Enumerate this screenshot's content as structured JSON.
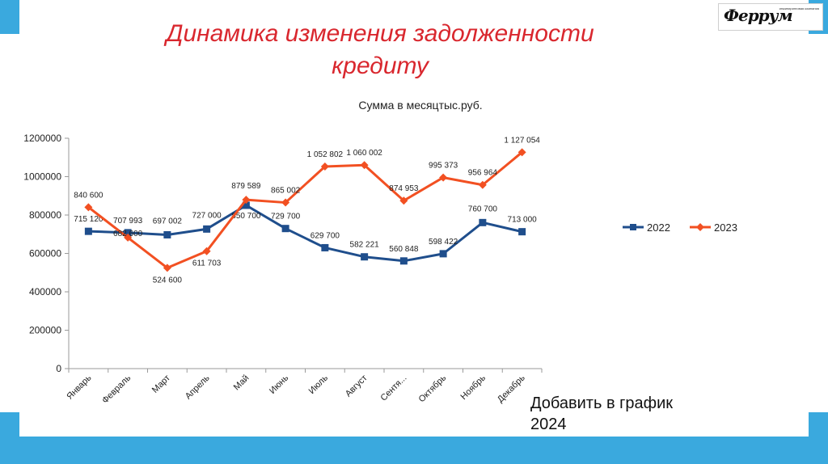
{
  "slide": {
    "title": "Динамика изменения задолженности кредиту",
    "note": "Добавить в график 2024"
  },
  "colors": {
    "band": "#3aa9de",
    "title": "#d9272e",
    "series_2022": "#1f4e8c",
    "series_2023": "#f25022"
  },
  "logo": {
    "text": "Феррум",
    "tagline": "инжиниринговая компания"
  },
  "chart_data": {
    "type": "line",
    "title": "Сумма в месяцтыс.руб.",
    "categories": [
      "Январь",
      "Февраль",
      "Март",
      "Апрель",
      "Май",
      "Июнь",
      "Июль",
      "Август",
      "Сентя...",
      "Октябрь",
      "Ноябрь",
      "Декабрь"
    ],
    "ylim": [
      0,
      1200000
    ],
    "yticks": [
      "0",
      "200000",
      "400000",
      "600000",
      "800000",
      "1000000",
      "1200000"
    ],
    "legend_position": "right",
    "grid": false,
    "series": [
      {
        "name": "2022",
        "marker": "square",
        "values": [
          715120,
          707993,
          697002,
          727000,
          850700,
          729700,
          629700,
          582221,
          560848,
          598422,
          760700,
          713000
        ],
        "labels": [
          "715 120",
          "707 993",
          "697 002",
          "727 000",
          "850 700",
          "729 700",
          "629 700",
          "582 221",
          "560 848",
          "598 422",
          "760 700",
          "713 000"
        ]
      },
      {
        "name": "2023",
        "marker": "diamond",
        "values": [
          840600,
          682600,
          524600,
          611703,
          879589,
          865002,
          1052802,
          1060002,
          874953,
          995373,
          956964,
          1127054
        ],
        "labels": [
          "840 600",
          "682 600",
          "524 600",
          "611 703",
          "879 589",
          "865 002",
          "1 052 802",
          "1 060 002",
          "874 953",
          "995 373",
          "956 964",
          "1 127 054"
        ]
      }
    ]
  }
}
